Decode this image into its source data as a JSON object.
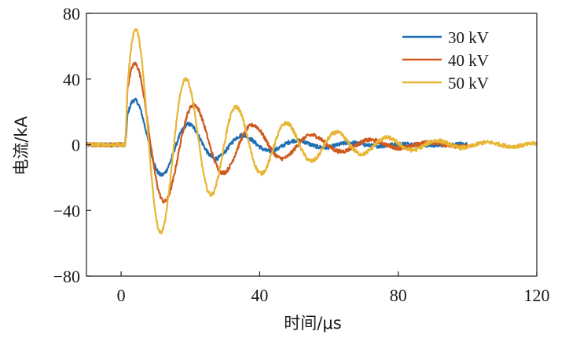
{
  "chart_data": {
    "type": "line",
    "xlabel": "时间/μs",
    "ylabel": "电流/kA",
    "xlim": [
      -10,
      120
    ],
    "ylim": [
      -80,
      80
    ],
    "x_ticks": [
      0,
      40,
      80,
      120
    ],
    "y_ticks": [
      80,
      40,
      0,
      -40,
      -80
    ],
    "x_tick_labels": [
      "0",
      "40",
      "80",
      "120"
    ],
    "y_tick_labels": [
      "80",
      "40",
      "0",
      "−40",
      "−80"
    ],
    "grid": false,
    "legend_position": "top-right",
    "noise_amplitude": 1.2,
    "series": [
      {
        "name": "30 kV",
        "color": "#1f6fb4",
        "x_start": -10,
        "x_end": 100,
        "onset": 1.2,
        "peak_time": 4.2,
        "peak": 27,
        "period": 15.6,
        "damping_tau": 20
      },
      {
        "name": "40 kV",
        "color": "#cf5a1f",
        "x_start": -10,
        "x_end": 100,
        "onset": 1.2,
        "peak_time": 4.3,
        "peak": 49,
        "period": 17.0,
        "damping_tau": 24
      },
      {
        "name": "50 kV",
        "color": "#e8b534",
        "x_start": -10,
        "x_end": 120,
        "onset": 1.2,
        "peak_time": 4.4,
        "peak": 70,
        "period": 14.5,
        "damping_tau": 26
      }
    ]
  }
}
